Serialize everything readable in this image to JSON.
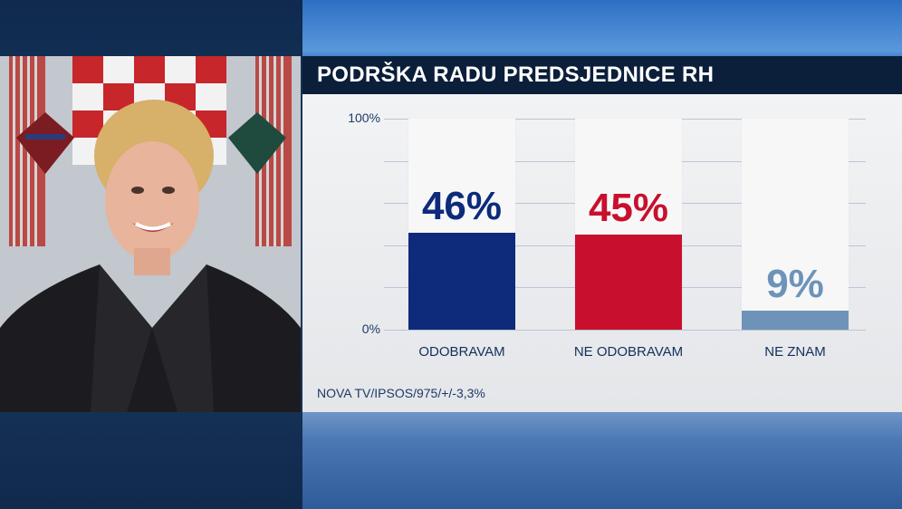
{
  "title": "PODRŠKA RADU PREDSJEDNICE RH",
  "source": "NOVA TV/IPSOS/975/+/-3,3%",
  "chart_data": {
    "type": "bar",
    "categories": [
      "ODOBRAVAM",
      "NE ODOBRAVAM",
      "NE ZNAM"
    ],
    "values": [
      46,
      45,
      9
    ],
    "value_labels": [
      "46%",
      "45%",
      "9%"
    ],
    "ylim": [
      0,
      100
    ],
    "y_tick_labels": [
      "100%",
      "0%"
    ],
    "grid": true,
    "colors": [
      "#0d2a7b",
      "#c8102e",
      "#6e93b8"
    ],
    "label_colors": [
      "#0d2a7b",
      "#c8102e",
      "#6e93b8"
    ]
  },
  "photo": {
    "icon": "portrait-photo"
  }
}
